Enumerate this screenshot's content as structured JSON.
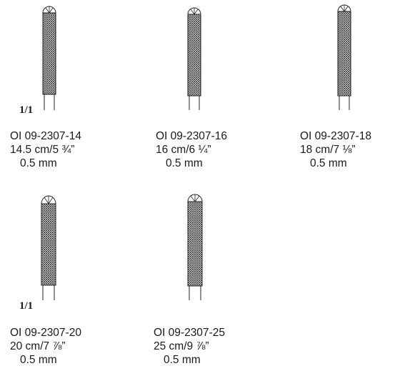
{
  "scale_marks": [
    "1/1",
    "1/1"
  ],
  "products": [
    {
      "code": "OI 09-2307-14",
      "length": "14.5 cm/5 ¾”",
      "size": "0.5 mm",
      "shaft_fraction": 0.8
    },
    {
      "code": "OI 09-2307-16",
      "length": "16 cm/6 ¼”",
      "size": "0.5 mm",
      "shaft_fraction": 0.82
    },
    {
      "code": "OI 09-2307-18",
      "length": "18 cm/7 ⅛”",
      "size": "0.5 mm",
      "shaft_fraction": 0.84
    },
    {
      "code": "OI 09-2307-20",
      "length": "20 cm/7 ⅞”",
      "size": "0.5 mm",
      "shaft_fraction": 0.86
    },
    {
      "code": "OI 09-2307-25",
      "length": "25 cm/9 ⅞”",
      "size": "0.5 mm",
      "shaft_fraction": 0.88
    }
  ]
}
